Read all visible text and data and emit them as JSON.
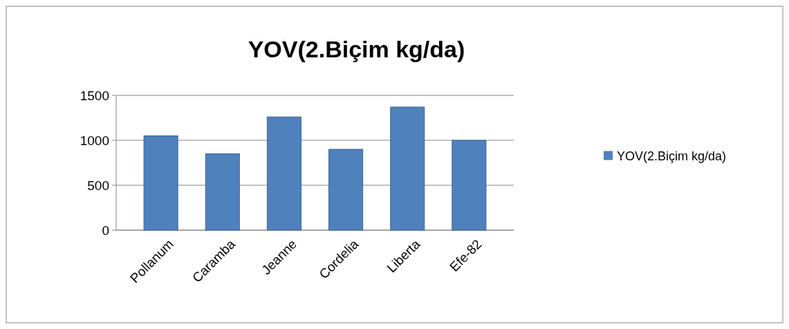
{
  "chart_data": {
    "type": "bar",
    "title": "YOV(2.Biçim kg/da)",
    "categories": [
      "Pollanum",
      "Caramba",
      "Jeanne",
      "Cordelia",
      "Liberta",
      "Efe-82"
    ],
    "series": [
      {
        "name": "YOV(2.Biçim kg/da)",
        "color": "#4f81bd",
        "values": [
          1050,
          850,
          1260,
          900,
          1370,
          1000
        ]
      }
    ],
    "ylim": [
      0,
      1500
    ],
    "yticks": [
      0,
      500,
      1000,
      1500
    ],
    "grid": "y",
    "legend": "right"
  }
}
